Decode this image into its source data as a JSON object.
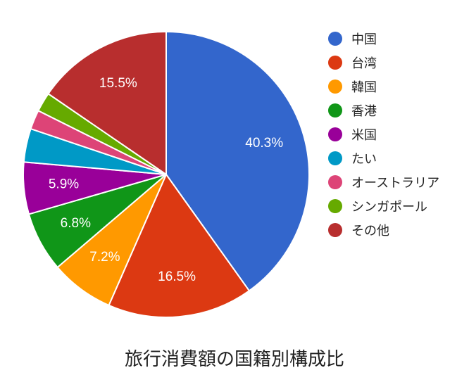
{
  "chart_data": {
    "type": "pie",
    "title": "旅行消費額の国籍別構成比",
    "start_angle_deg": 0,
    "direction": "clockwise",
    "legend_position": "right",
    "slices": [
      {
        "name": "中国",
        "value": 40.3,
        "label": "40.3%",
        "color": "#3366cc"
      },
      {
        "name": "台湾",
        "value": 16.5,
        "label": "16.5%",
        "color": "#dc3912"
      },
      {
        "name": "韓国",
        "value": 7.2,
        "label": "7.2%",
        "color": "#ff9900"
      },
      {
        "name": "香港",
        "value": 6.8,
        "label": "6.8%",
        "color": "#109618"
      },
      {
        "name": "米国",
        "value": 5.9,
        "label": "5.9%",
        "color": "#990099"
      },
      {
        "name": "たい",
        "value": 3.8,
        "label": "",
        "color": "#0099c6"
      },
      {
        "name": "オーストラリア",
        "value": 2.2,
        "label": "",
        "color": "#dd4477"
      },
      {
        "name": "シンガポール",
        "value": 2.2,
        "label": "",
        "color": "#66aa00"
      },
      {
        "name": "その他",
        "value": 15.5,
        "label": "15.5%",
        "color": "#b82e2e"
      }
    ]
  }
}
